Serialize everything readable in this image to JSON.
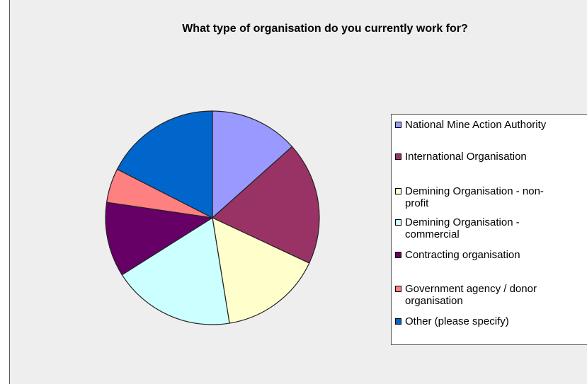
{
  "chart_data": {
    "type": "pie",
    "title": "What type of organisation do you currently work for?",
    "start_angle_deg": 0,
    "direction": "clockwise",
    "legend_position": "right",
    "slices": [
      {
        "label": "National Mine Action Authority",
        "value": 13.4,
        "color": "#9999ff"
      },
      {
        "label": "International Organisation",
        "value": 18.6,
        "color": "#993366"
      },
      {
        "label": "Demining Organisation - non-profit",
        "value": 15.5,
        "color": "#ffffcc"
      },
      {
        "label": "Demining Organisation - commercial",
        "value": 18.6,
        "color": "#ccffff"
      },
      {
        "label": "Contracting organisation",
        "value": 11.3,
        "color": "#660066"
      },
      {
        "label": "Government agency / donor organisation",
        "value": 5.2,
        "color": "#ff8080"
      },
      {
        "label": "Other (please specify)",
        "value": 17.5,
        "color": "#0066cc"
      }
    ]
  },
  "legend": {
    "items": [
      {
        "lines": [
          "National Mine Action Authority"
        ]
      },
      {
        "lines": [
          "International Organisation"
        ]
      },
      {
        "lines": [
          "Demining Organisation - non-",
          "profit"
        ]
      },
      {
        "lines": [
          "Demining Organisation -",
          "commercial"
        ]
      },
      {
        "lines": [
          "Contracting organisation"
        ]
      },
      {
        "lines": [
          "Government agency / donor",
          "organisation"
        ]
      },
      {
        "lines": [
          "Other (please specify)"
        ]
      }
    ]
  }
}
